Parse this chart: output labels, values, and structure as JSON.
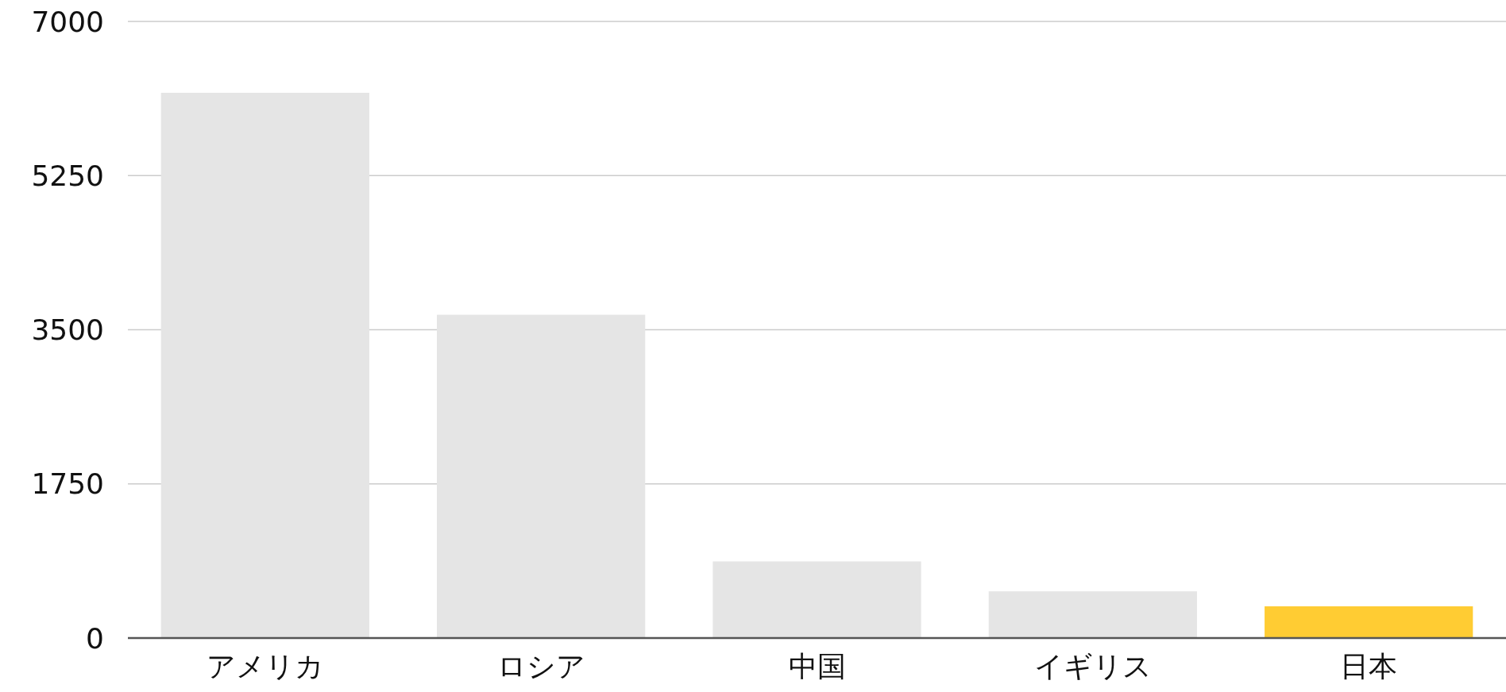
{
  "chart_data": {
    "type": "bar",
    "categories": [
      "アメリカ",
      "ロシア",
      "中国",
      "イギリス",
      "日本"
    ],
    "values": [
      6190,
      3670,
      870,
      530,
      360
    ],
    "colors": [
      "#e5e5e5",
      "#e5e5e5",
      "#e5e5e5",
      "#e5e5e5",
      "#ffcc33"
    ],
    "ylim": [
      0,
      7000
    ],
    "yticks": [
      0,
      1750,
      3500,
      5250,
      7000
    ],
    "grid": "y"
  }
}
